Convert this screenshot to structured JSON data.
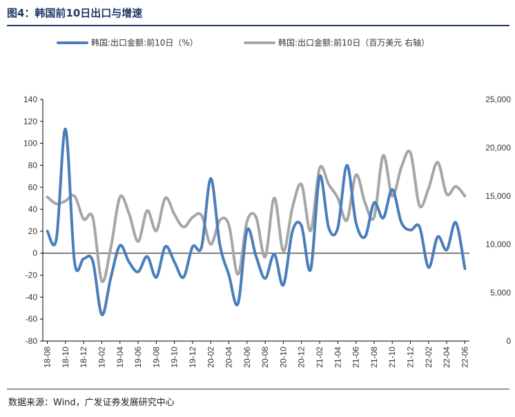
{
  "figure": {
    "title": "图4：韩国前10日出口与增速",
    "source": "数据来源：Wind，广发证券发展研究中心"
  },
  "chart_data": {
    "type": "line",
    "title": "",
    "xlabel": "",
    "ylabel": "",
    "grid": false,
    "legend_position": "top",
    "x_ticks": [
      "18-08",
      "18-10",
      "18-12",
      "19-02",
      "19-04",
      "19-06",
      "19-08",
      "19-10",
      "19-12",
      "20-02",
      "20-04",
      "20-06",
      "20-08",
      "20-10",
      "20-12",
      "21-02",
      "21-04",
      "21-06",
      "21-08",
      "21-10",
      "21-12",
      "22-02",
      "22-04",
      "22-06"
    ],
    "x": [
      "18-08",
      "18-09",
      "18-10",
      "18-11",
      "18-12",
      "19-01",
      "19-02",
      "19-03",
      "19-04",
      "19-05",
      "19-06",
      "19-07",
      "19-08",
      "19-09",
      "19-10",
      "19-11",
      "19-12",
      "20-01",
      "20-02",
      "20-03",
      "20-04",
      "20-05",
      "20-06",
      "20-07",
      "20-08",
      "20-09",
      "20-10",
      "20-11",
      "20-12",
      "21-01",
      "21-02",
      "21-03",
      "21-04",
      "21-05",
      "21-06",
      "21-07",
      "21-08",
      "21-09",
      "21-10",
      "21-11",
      "21-12",
      "22-01",
      "22-02",
      "22-03",
      "22-04",
      "22-05",
      "22-06"
    ],
    "y_left": {
      "lim": [
        -80,
        140
      ],
      "ticks": [
        "-80",
        "-60",
        "-40",
        "-20",
        "0",
        "20",
        "40",
        "60",
        "80",
        "100",
        "120",
        "140"
      ]
    },
    "y_right": {
      "lim": [
        0,
        25000
      ],
      "ticks": [
        "0",
        "5,000",
        "10,000",
        "15,000",
        "20,000",
        "25,000"
      ]
    },
    "series": [
      {
        "name": "韩国:出口金额:前10日（%）",
        "axis": "left",
        "color": "#4a7ebb",
        "values": [
          20,
          13,
          113,
          -8,
          -5,
          -7,
          -56,
          -22,
          7,
          -8,
          -17,
          -3,
          -22,
          6,
          -8,
          -22,
          6,
          6,
          68,
          8,
          -20,
          -46,
          21,
          -3,
          -23,
          -1,
          -29,
          20,
          25,
          -15,
          70,
          23,
          23,
          80,
          28,
          15,
          46,
          32,
          58,
          28,
          21,
          24,
          -13,
          15,
          3,
          28,
          -14
        ]
      },
      {
        "name": "韩国:出口金额:前10日（百万美元 右轴）",
        "axis": "right",
        "color": "#a6a6a6",
        "values": [
          14900,
          14200,
          14500,
          15000,
          12600,
          12800,
          6200,
          9700,
          14900,
          13200,
          10300,
          13500,
          11400,
          14800,
          13100,
          11800,
          12800,
          13000,
          10000,
          12500,
          12000,
          6900,
          12400,
          12800,
          8700,
          14800,
          9300,
          13800,
          16200,
          11400,
          17900,
          16200,
          14800,
          12500,
          17200,
          14300,
          12800,
          19200,
          15000,
          18000,
          19500,
          14000,
          15800,
          18500,
          15200,
          16000,
          15000
        ]
      }
    ]
  }
}
